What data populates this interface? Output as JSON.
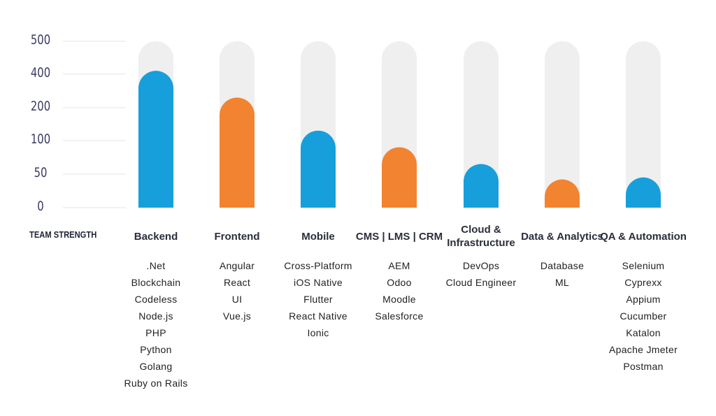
{
  "chart_data": {
    "type": "bar",
    "ylabel": "TEAM STRENGTH",
    "y_ticks": [
      "0",
      "50",
      "100",
      "200",
      "400",
      "500"
    ],
    "y_tick_values": [
      0,
      50,
      100,
      200,
      400,
      500
    ],
    "ylim": [
      0,
      500
    ],
    "grid": true,
    "categories": [
      "Backend",
      "Frontend",
      "Mobile",
      "CMS | LMS | CRM",
      "Cloud & Infrastructure",
      "Data & Analytics",
      "QA & Automation"
    ],
    "values": [
      410,
      260,
      130,
      90,
      65,
      42,
      45
    ],
    "bar_colors": [
      "#169fdb",
      "#f28330",
      "#169fdb",
      "#f28330",
      "#169fdb",
      "#f28330",
      "#169fdb"
    ],
    "track_color": "#efefef",
    "grid_color": "#e4e4ea"
  },
  "columns": [
    {
      "label": "Backend",
      "items": [
        ".Net",
        "Blockchain",
        "Codeless",
        "Node.js",
        "PHP",
        "Python",
        "Golang",
        "Ruby on Rails"
      ]
    },
    {
      "label": "Frontend",
      "items": [
        "Angular",
        "React",
        "UI",
        "Vue.js"
      ]
    },
    {
      "label": "Mobile",
      "items": [
        "Cross-Platform",
        "iOS Native",
        "Flutter",
        "React Native",
        "Ionic"
      ]
    },
    {
      "label": "CMS | LMS | CRM",
      "items": [
        "AEM",
        "Odoo",
        "Moodle",
        "Salesforce"
      ]
    },
    {
      "label": "Cloud & Infrastructure",
      "items": [
        "DevOps",
        "Cloud Engineer"
      ]
    },
    {
      "label": "Data & Analytics",
      "items": [
        "Database",
        "ML"
      ]
    },
    {
      "label": "QA & Automation",
      "items": [
        "Selenium",
        "Cyprexx",
        "Appium",
        "Cucumber",
        "Katalon",
        "Apache Jmeter",
        "Postman"
      ]
    }
  ]
}
